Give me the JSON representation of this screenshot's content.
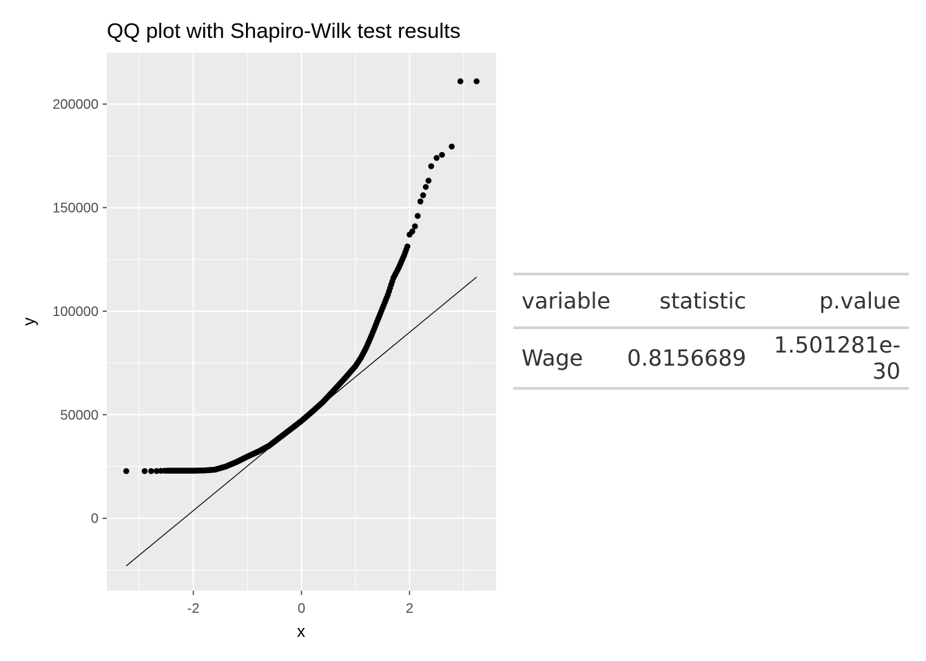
{
  "chart_data": {
    "type": "scatter",
    "title": "QQ plot with Shapiro-Wilk test results",
    "xlabel": "x",
    "ylabel": "y",
    "xlim": [
      -3.6,
      3.6
    ],
    "ylim": [
      -35000,
      225000
    ],
    "x_ticks": [
      -2,
      0,
      2
    ],
    "x_tick_labels": [
      "-2",
      "0",
      "2"
    ],
    "y_ticks": [
      0,
      50000,
      100000,
      150000,
      200000
    ],
    "y_tick_labels": [
      "0",
      "50000",
      "100000",
      "150000",
      "200000"
    ],
    "grid": true,
    "background": "#ebebeb",
    "point_color": "#000000",
    "reference_line": {
      "x": [
        -3.24,
        3.24
      ],
      "y": [
        -23000,
        116500
      ]
    },
    "quantile_curve": {
      "x": [
        -3.24,
        -2.9,
        -2.7,
        -2.5,
        -2.2,
        -2.0,
        -1.8,
        -1.6,
        -1.4,
        -1.2,
        -1.0,
        -0.8,
        -0.6,
        -0.4,
        -0.2,
        0.0,
        0.2,
        0.4,
        0.6,
        0.8,
        1.0,
        1.1,
        1.2,
        1.3,
        1.4,
        1.5,
        1.6,
        1.7,
        1.8,
        1.9,
        1.97
      ],
      "y": [
        22800,
        22800,
        22800,
        23000,
        23000,
        23000,
        23100,
        23500,
        25000,
        27200,
        29800,
        32200,
        35000,
        39000,
        43000,
        47000,
        51500,
        56200,
        61800,
        67500,
        73500,
        77500,
        82500,
        88500,
        95000,
        101500,
        108000,
        116000,
        121000,
        127000,
        132000
      ]
    },
    "upper_tail": {
      "x": [
        2.0,
        2.05,
        2.1,
        2.15,
        2.2,
        2.25,
        2.3,
        2.35,
        2.4,
        2.5,
        2.6,
        2.78,
        2.94,
        3.24
      ],
      "y": [
        137000,
        138500,
        141000,
        146000,
        153000,
        156000,
        160000,
        163000,
        170000,
        174000,
        175500,
        179500,
        211000,
        211000
      ]
    },
    "table": {
      "headers": [
        "variable",
        "statistic",
        "p.value"
      ],
      "rows": [
        [
          "Wage",
          "0.8156689",
          "1.501281e-30"
        ]
      ]
    }
  }
}
